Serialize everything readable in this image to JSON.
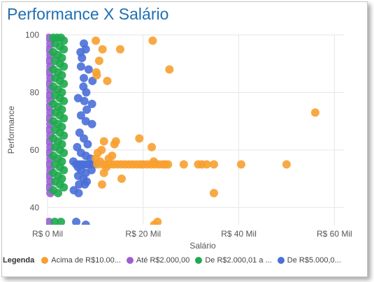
{
  "chart_data": {
    "type": "scatter",
    "title": "Performance X Salário",
    "xlabel": "Salário",
    "ylabel": "Performance",
    "xlim": [
      0,
      62000
    ],
    "ylim": [
      34,
      100
    ],
    "x_ticks": [
      {
        "value": 0,
        "label": "R$ 0 Mil"
      },
      {
        "value": 20000,
        "label": "R$ 20 Mil"
      },
      {
        "value": 40000,
        "label": "R$ 40 Mil"
      },
      {
        "value": 60000,
        "label": "R$ 60 Mil"
      }
    ],
    "y_ticks": [
      40,
      60,
      80,
      100
    ],
    "grid": true,
    "legend_title": "Legenda",
    "legend_position": "bottom",
    "series": [
      {
        "name": "Acima de R$10.00...",
        "color": "#f7a030",
        "points": [
          [
            10100,
            98
          ],
          [
            22000,
            98
          ],
          [
            11500,
            95
          ],
          [
            15200,
            95
          ],
          [
            10800,
            91
          ],
          [
            10200,
            87
          ],
          [
            10300,
            86
          ],
          [
            12500,
            84
          ],
          [
            25500,
            88
          ],
          [
            56000,
            73
          ],
          [
            11800,
            63
          ],
          [
            14300,
            63
          ],
          [
            14000,
            62
          ],
          [
            19200,
            64
          ],
          [
            21800,
            61
          ],
          [
            11300,
            60
          ],
          [
            10500,
            59
          ],
          [
            13500,
            58
          ],
          [
            10100,
            57
          ],
          [
            11000,
            56
          ],
          [
            12800,
            57
          ],
          [
            22200,
            56
          ],
          [
            10400,
            55
          ],
          [
            11500,
            55
          ],
          [
            12200,
            55
          ],
          [
            13000,
            55
          ],
          [
            13800,
            55
          ],
          [
            14600,
            55
          ],
          [
            15400,
            55
          ],
          [
            16200,
            55
          ],
          [
            17000,
            55
          ],
          [
            17800,
            55
          ],
          [
            18600,
            55
          ],
          [
            19400,
            55
          ],
          [
            20000,
            55
          ],
          [
            20800,
            55
          ],
          [
            21600,
            55
          ],
          [
            22400,
            55
          ],
          [
            23200,
            55
          ],
          [
            24000,
            55
          ],
          [
            24600,
            55
          ],
          [
            25200,
            55
          ],
          [
            28500,
            55
          ],
          [
            31500,
            55
          ],
          [
            32300,
            55
          ],
          [
            33300,
            55
          ],
          [
            34800,
            55
          ],
          [
            40500,
            55
          ],
          [
            50000,
            55
          ],
          [
            11800,
            52
          ],
          [
            12300,
            54
          ],
          [
            15500,
            50
          ],
          [
            11400,
            48
          ],
          [
            34800,
            45
          ],
          [
            22300,
            34
          ],
          [
            23000,
            35
          ]
        ]
      },
      {
        "name": "Até R$2.000,00",
        "color": "#9b5fd3",
        "points": [
          [
            300,
            99
          ],
          [
            600,
            97
          ],
          [
            300,
            95
          ],
          [
            600,
            93
          ],
          [
            300,
            91
          ],
          [
            600,
            89
          ],
          [
            300,
            87
          ],
          [
            600,
            85
          ],
          [
            300,
            83
          ],
          [
            600,
            81
          ],
          [
            300,
            79
          ],
          [
            600,
            77
          ],
          [
            300,
            75
          ],
          [
            600,
            73
          ],
          [
            300,
            71
          ],
          [
            600,
            69
          ],
          [
            300,
            67
          ],
          [
            600,
            65
          ],
          [
            300,
            63
          ],
          [
            600,
            61
          ],
          [
            300,
            59
          ],
          [
            600,
            57
          ],
          [
            300,
            55
          ],
          [
            600,
            53
          ],
          [
            300,
            51
          ],
          [
            600,
            49
          ],
          [
            300,
            47
          ],
          [
            600,
            45
          ],
          [
            300,
            35
          ]
        ]
      },
      {
        "name": "De R$2.000,01 a ...",
        "color": "#1faa4e",
        "points": [
          [
            1200,
            99
          ],
          [
            2000,
            99
          ],
          [
            2800,
            99
          ],
          [
            3400,
            98
          ],
          [
            1600,
            97
          ],
          [
            2600,
            96
          ],
          [
            3400,
            95
          ],
          [
            1200,
            94
          ],
          [
            2200,
            93
          ],
          [
            3000,
            92
          ],
          [
            1600,
            91
          ],
          [
            2600,
            90
          ],
          [
            3400,
            89
          ],
          [
            1200,
            88
          ],
          [
            2200,
            87
          ],
          [
            3000,
            86
          ],
          [
            1600,
            85
          ],
          [
            2600,
            84
          ],
          [
            3400,
            83
          ],
          [
            1200,
            82
          ],
          [
            2200,
            81
          ],
          [
            3000,
            80
          ],
          [
            1600,
            79
          ],
          [
            2600,
            78
          ],
          [
            3400,
            77
          ],
          [
            1200,
            76
          ],
          [
            2200,
            75
          ],
          [
            3000,
            74
          ],
          [
            1600,
            73
          ],
          [
            2600,
            72
          ],
          [
            3400,
            71
          ],
          [
            1200,
            70
          ],
          [
            2200,
            69
          ],
          [
            3000,
            68
          ],
          [
            1600,
            67
          ],
          [
            2600,
            66
          ],
          [
            3400,
            65
          ],
          [
            1200,
            64
          ],
          [
            2200,
            63
          ],
          [
            3000,
            62
          ],
          [
            1600,
            61
          ],
          [
            2600,
            60
          ],
          [
            3400,
            59
          ],
          [
            1200,
            58
          ],
          [
            2200,
            57
          ],
          [
            3000,
            56
          ],
          [
            1600,
            55
          ],
          [
            2600,
            54
          ],
          [
            3400,
            53
          ],
          [
            1200,
            52
          ],
          [
            2200,
            51
          ],
          [
            3000,
            50
          ],
          [
            1600,
            49
          ],
          [
            2600,
            48
          ],
          [
            3400,
            47
          ],
          [
            1200,
            46
          ],
          [
            2200,
            45
          ],
          [
            1500,
            35
          ],
          [
            2800,
            35
          ]
        ]
      },
      {
        "name": "De R$5.000,0...",
        "color": "#4a6fd8",
        "points": [
          [
            7600,
            97
          ],
          [
            8000,
            95
          ],
          [
            6900,
            94
          ],
          [
            7200,
            92
          ],
          [
            8600,
            88
          ],
          [
            7000,
            89
          ],
          [
            7600,
            85
          ],
          [
            9400,
            84
          ],
          [
            7500,
            82
          ],
          [
            8100,
            80
          ],
          [
            6400,
            78
          ],
          [
            7700,
            77
          ],
          [
            9300,
            76
          ],
          [
            8200,
            74
          ],
          [
            7000,
            72
          ],
          [
            8000,
            70
          ],
          [
            9300,
            69
          ],
          [
            6700,
            66
          ],
          [
            7600,
            64
          ],
          [
            8400,
            62
          ],
          [
            6200,
            61
          ],
          [
            7000,
            59
          ],
          [
            8000,
            58
          ],
          [
            9000,
            57
          ],
          [
            5400,
            56
          ],
          [
            6000,
            55
          ],
          [
            6600,
            55
          ],
          [
            7200,
            55
          ],
          [
            7800,
            55
          ],
          [
            8400,
            55
          ],
          [
            9000,
            55
          ],
          [
            9600,
            55
          ],
          [
            6400,
            54
          ],
          [
            7000,
            53
          ],
          [
            8000,
            52
          ],
          [
            9200,
            53
          ],
          [
            6400,
            51
          ],
          [
            7500,
            50
          ],
          [
            8200,
            49
          ],
          [
            6600,
            48
          ],
          [
            7800,
            48
          ],
          [
            5500,
            46
          ],
          [
            6500,
            45
          ],
          [
            6000,
            35
          ],
          [
            8000,
            34
          ]
        ]
      }
    ]
  }
}
